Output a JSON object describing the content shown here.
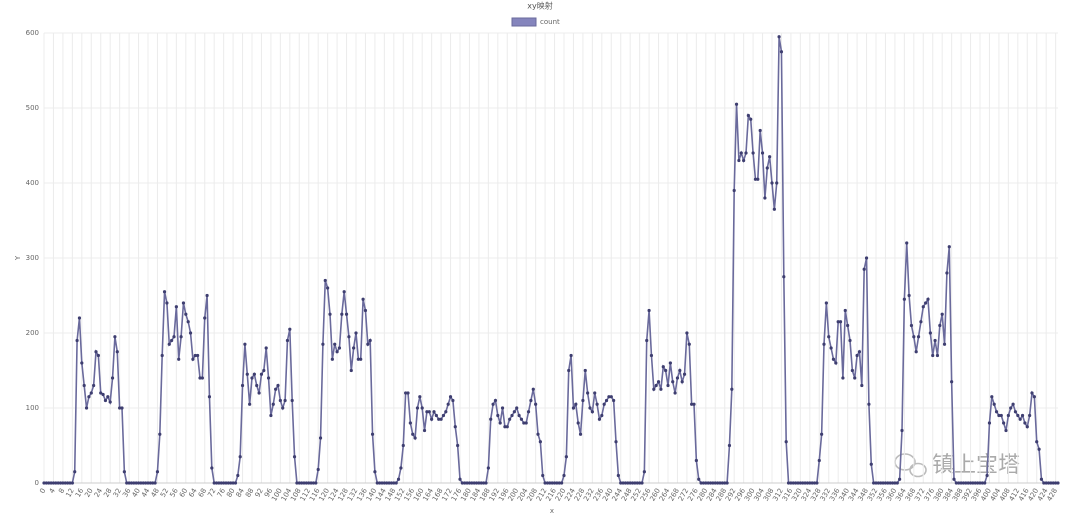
{
  "chart_data": {
    "type": "line",
    "title": "xy映射",
    "x_label": "x",
    "y_label": "Y",
    "watermark": "镇上宝塔",
    "xlim": [
      0,
      429
    ],
    "ylim": [
      0,
      600
    ],
    "yticks": [
      0,
      100,
      200,
      300,
      400,
      500,
      600
    ],
    "xticks": [
      0,
      4,
      8,
      12,
      16,
      20,
      24,
      28,
      32,
      36,
      40,
      44,
      48,
      52,
      56,
      60,
      64,
      68,
      72,
      76,
      80,
      84,
      88,
      92,
      96,
      100,
      104,
      108,
      112,
      116,
      120,
      124,
      128,
      132,
      136,
      140,
      144,
      148,
      152,
      156,
      160,
      164,
      168,
      172,
      176,
      180,
      184,
      188,
      192,
      196,
      200,
      204,
      208,
      212,
      216,
      220,
      224,
      228,
      232,
      236,
      240,
      244,
      248,
      252,
      256,
      260,
      264,
      268,
      272,
      276,
      280,
      284,
      288,
      292,
      296,
      300,
      304,
      308,
      312,
      316,
      320,
      324,
      328,
      332,
      336,
      340,
      344,
      348,
      352,
      356,
      360,
      364,
      368,
      372,
      376,
      380,
      384,
      388,
      392,
      396,
      400,
      404,
      408,
      412,
      416,
      420,
      424,
      428
    ],
    "grid": true,
    "legend": "top",
    "x": [
      0,
      1,
      2,
      3,
      4,
      5,
      6,
      7,
      8,
      9,
      10,
      11,
      12,
      13,
      14,
      15,
      16,
      17,
      18,
      19,
      20,
      21,
      22,
      23,
      24,
      25,
      26,
      27,
      28,
      29,
      30,
      31,
      32,
      33,
      34,
      35,
      36,
      37,
      38,
      39,
      40,
      41,
      42,
      43,
      44,
      45,
      46,
      47,
      48,
      49,
      50,
      51,
      52,
      53,
      54,
      55,
      56,
      57,
      58,
      59,
      60,
      61,
      62,
      63,
      64,
      65,
      66,
      67,
      68,
      69,
      70,
      71,
      72,
      73,
      74,
      75,
      76,
      77,
      78,
      79,
      80,
      81,
      82,
      83,
      84,
      85,
      86,
      87,
      88,
      89,
      90,
      91,
      92,
      93,
      94,
      95,
      96,
      97,
      98,
      99,
      100,
      101,
      102,
      103,
      104,
      105,
      106,
      107,
      108,
      109,
      110,
      111,
      112,
      113,
      114,
      115,
      116,
      117,
      118,
      119,
      120,
      121,
      122,
      123,
      124,
      125,
      126,
      127,
      128,
      129,
      130,
      131,
      132,
      133,
      134,
      135,
      136,
      137,
      138,
      139,
      140,
      141,
      142,
      143,
      144,
      145,
      146,
      147,
      148,
      149,
      150,
      151,
      152,
      153,
      154,
      155,
      156,
      157,
      158,
      159,
      160,
      161,
      162,
      163,
      164,
      165,
      166,
      167,
      168,
      169,
      170,
      171,
      172,
      173,
      174,
      175,
      176,
      177,
      178,
      179,
      180,
      181,
      182,
      183,
      184,
      185,
      186,
      187,
      188,
      189,
      190,
      191,
      192,
      193,
      194,
      195,
      196,
      197,
      198,
      199,
      200,
      201,
      202,
      203,
      204,
      205,
      206,
      207,
      208,
      209,
      210,
      211,
      212,
      213,
      214,
      215,
      216,
      217,
      218,
      219,
      220,
      221,
      222,
      223,
      224,
      225,
      226,
      227,
      228,
      229,
      230,
      231,
      232,
      233,
      234,
      235,
      236,
      237,
      238,
      239,
      240,
      241,
      242,
      243,
      244,
      245,
      246,
      247,
      248,
      249,
      250,
      251,
      252,
      253,
      254,
      255,
      256,
      257,
      258,
      259,
      260,
      261,
      262,
      263,
      264,
      265,
      266,
      267,
      268,
      269,
      270,
      271,
      272,
      273,
      274,
      275,
      276,
      277,
      278,
      279,
      280,
      281,
      282,
      283,
      284,
      285,
      286,
      287,
      288,
      289,
      290,
      291,
      292,
      293,
      294,
      295,
      296,
      297,
      298,
      299,
      300,
      301,
      302,
      303,
      304,
      305,
      306,
      307,
      308,
      309,
      310,
      311,
      312,
      313,
      314,
      315,
      316,
      317,
      318,
      319,
      320,
      321,
      322,
      323,
      324,
      325,
      326,
      327,
      328,
      329,
      330,
      331,
      332,
      333,
      334,
      335,
      336,
      337,
      338,
      339,
      340,
      341,
      342,
      343,
      344,
      345,
      346,
      347,
      348,
      349,
      350,
      351,
      352,
      353,
      354,
      355,
      356,
      357,
      358,
      359,
      360,
      361,
      362,
      363,
      364,
      365,
      366,
      367,
      368,
      369,
      370,
      371,
      372,
      373,
      374,
      375,
      376,
      377,
      378,
      379,
      380,
      381,
      382,
      383,
      384,
      385,
      386,
      387,
      388,
      389,
      390,
      391,
      392,
      393,
      394,
      395,
      396,
      397,
      398,
      399,
      400,
      401,
      402,
      403,
      404,
      405,
      406,
      407,
      408,
      409,
      410,
      411,
      412,
      413,
      414,
      415,
      416,
      417,
      418,
      419,
      420,
      421,
      422,
      423,
      424,
      425,
      426,
      427,
      428,
      429
    ],
    "series": [
      {
        "name": "count",
        "color": "#6a6a9c",
        "fill": "#8585bd",
        "values": [
          0,
          0,
          0,
          0,
          0,
          0,
          0,
          0,
          0,
          0,
          0,
          0,
          0,
          15,
          190,
          220,
          160,
          130,
          100,
          115,
          120,
          130,
          175,
          170,
          120,
          118,
          110,
          115,
          108,
          140,
          195,
          175,
          100,
          100,
          15,
          0,
          0,
          0,
          0,
          0,
          0,
          0,
          0,
          0,
          0,
          0,
          0,
          0,
          15,
          65,
          170,
          255,
          240,
          185,
          190,
          195,
          235,
          165,
          195,
          240,
          225,
          215,
          200,
          165,
          170,
          170,
          140,
          140,
          220,
          250,
          115,
          20,
          0,
          0,
          0,
          0,
          0,
          0,
          0,
          0,
          0,
          0,
          10,
          35,
          130,
          185,
          145,
          105,
          140,
          145,
          130,
          120,
          145,
          150,
          180,
          140,
          90,
          105,
          125,
          130,
          110,
          100,
          110,
          190,
          205,
          110,
          35,
          0,
          0,
          0,
          0,
          0,
          0,
          0,
          0,
          0,
          18,
          60,
          185,
          270,
          260,
          225,
          165,
          185,
          175,
          180,
          225,
          255,
          225,
          195,
          150,
          180,
          200,
          165,
          165,
          245,
          230,
          185,
          190,
          65,
          15,
          0,
          0,
          0,
          0,
          0,
          0,
          0,
          0,
          0,
          5,
          20,
          50,
          120,
          120,
          80,
          65,
          60,
          100,
          115,
          100,
          70,
          95,
          95,
          85,
          95,
          90,
          85,
          85,
          90,
          95,
          105,
          115,
          110,
          75,
          50,
          5,
          0,
          0,
          0,
          0,
          0,
          0,
          0,
          0,
          0,
          0,
          0,
          20,
          85,
          105,
          110,
          90,
          80,
          100,
          75,
          75,
          85,
          90,
          95,
          100,
          90,
          85,
          80,
          80,
          95,
          110,
          125,
          105,
          65,
          55,
          10,
          0,
          0,
          0,
          0,
          0,
          0,
          0,
          0,
          10,
          35,
          150,
          170,
          100,
          105,
          80,
          65,
          110,
          150,
          120,
          100,
          95,
          120,
          105,
          85,
          90,
          105,
          110,
          115,
          115,
          110,
          55,
          10,
          0,
          0,
          0,
          0,
          0,
          0,
          0,
          0,
          0,
          0,
          15,
          190,
          230,
          170,
          125,
          130,
          135,
          125,
          155,
          150,
          130,
          160,
          135,
          120,
          140,
          150,
          135,
          145,
          200,
          185,
          105,
          105,
          30,
          5,
          0,
          0,
          0,
          0,
          0,
          0,
          0,
          0,
          0,
          0,
          0,
          0,
          50,
          125,
          390,
          505,
          430,
          440,
          430,
          440,
          490,
          485,
          440,
          405,
          405,
          470,
          440,
          380,
          420,
          435,
          400,
          365,
          400,
          595,
          575,
          275,
          55,
          0,
          0,
          0,
          0,
          0,
          0,
          0,
          0,
          0,
          0,
          0,
          0,
          0,
          30,
          65,
          185,
          240,
          195,
          180,
          165,
          160,
          215,
          215,
          140,
          230,
          210,
          190,
          150,
          140,
          170,
          175,
          130,
          285,
          300,
          105,
          25,
          0,
          0,
          0,
          0,
          0,
          0,
          0,
          0,
          0,
          0,
          0,
          5,
          70,
          245,
          320,
          250,
          210,
          195,
          175,
          195,
          215,
          235,
          240,
          245,
          200,
          170,
          190,
          170,
          210,
          225,
          185,
          280,
          315,
          135,
          5,
          0,
          0,
          0,
          0,
          0,
          0,
          0,
          0,
          0,
          0,
          0,
          0,
          0,
          10,
          80,
          115,
          105,
          95,
          90,
          90,
          80,
          70,
          90,
          100,
          105,
          95,
          90,
          85,
          90,
          80,
          75,
          90,
          120,
          115,
          55,
          45,
          5,
          0,
          0,
          0,
          0,
          0,
          0,
          0
        ]
      }
    ]
  }
}
